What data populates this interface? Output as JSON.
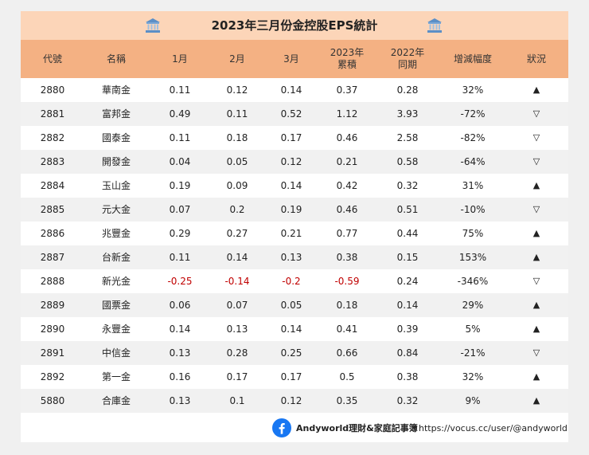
{
  "title": "2023年三月份金控股EPS統計",
  "icons": {
    "title_left": "bank-building-icon",
    "title_right": "bank-building-icon",
    "footer": "facebook-icon"
  },
  "colors": {
    "title_bg": "#fcd5b8",
    "header_bg": "#f4b183",
    "negative": "#c00000",
    "alt_row": "#f1f1f1",
    "facebook": "#1877f2"
  },
  "headers": [
    "代號",
    "名稱",
    "1月",
    "2月",
    "3月",
    "2023年\n累積",
    "2022年\n同期",
    "增減幅度",
    "狀況"
  ],
  "rows": [
    {
      "code": "2880",
      "name": "華南金",
      "m1": "0.11",
      "m2": "0.12",
      "m3": "0.14",
      "ytd": "0.37",
      "prev": "0.28",
      "change": "32%",
      "status": "▲"
    },
    {
      "code": "2881",
      "name": "富邦金",
      "m1": "0.49",
      "m2": "0.11",
      "m3": "0.52",
      "ytd": "1.12",
      "prev": "3.93",
      "change": "-72%",
      "status": "▽"
    },
    {
      "code": "2882",
      "name": "國泰金",
      "m1": "0.11",
      "m2": "0.18",
      "m3": "0.17",
      "ytd": "0.46",
      "prev": "2.58",
      "change": "-82%",
      "status": "▽"
    },
    {
      "code": "2883",
      "name": "開發金",
      "m1": "0.04",
      "m2": "0.05",
      "m3": "0.12",
      "ytd": "0.21",
      "prev": "0.58",
      "change": "-64%",
      "status": "▽"
    },
    {
      "code": "2884",
      "name": "玉山金",
      "m1": "0.19",
      "m2": "0.09",
      "m3": "0.14",
      "ytd": "0.42",
      "prev": "0.32",
      "change": "31%",
      "status": "▲"
    },
    {
      "code": "2885",
      "name": "元大金",
      "m1": "0.07",
      "m2": "0.2",
      "m3": "0.19",
      "ytd": "0.46",
      "prev": "0.51",
      "change": "-10%",
      "status": "▽"
    },
    {
      "code": "2886",
      "name": "兆豐金",
      "m1": "0.29",
      "m2": "0.27",
      "m3": "0.21",
      "ytd": "0.77",
      "prev": "0.44",
      "change": "75%",
      "status": "▲"
    },
    {
      "code": "2887",
      "name": "台新金",
      "m1": "0.11",
      "m2": "0.14",
      "m3": "0.13",
      "ytd": "0.38",
      "prev": "0.15",
      "change": "153%",
      "status": "▲"
    },
    {
      "code": "2888",
      "name": "新光金",
      "m1": "-0.25",
      "m2": "-0.14",
      "m3": "-0.2",
      "ytd": "-0.59",
      "prev": "0.24",
      "change": "-346%",
      "status": "▽"
    },
    {
      "code": "2889",
      "name": "國票金",
      "m1": "0.06",
      "m2": "0.07",
      "m3": "0.05",
      "ytd": "0.18",
      "prev": "0.14",
      "change": "29%",
      "status": "▲"
    },
    {
      "code": "2890",
      "name": "永豐金",
      "m1": "0.14",
      "m2": "0.13",
      "m3": "0.14",
      "ytd": "0.41",
      "prev": "0.39",
      "change": "5%",
      "status": "▲"
    },
    {
      "code": "2891",
      "name": "中信金",
      "m1": "0.13",
      "m2": "0.28",
      "m3": "0.25",
      "ytd": "0.66",
      "prev": "0.84",
      "change": "-21%",
      "status": "▽"
    },
    {
      "code": "2892",
      "name": "第一金",
      "m1": "0.16",
      "m2": "0.17",
      "m3": "0.17",
      "ytd": "0.5",
      "prev": "0.38",
      "change": "32%",
      "status": "▲"
    },
    {
      "code": "5880",
      "name": "合庫金",
      "m1": "0.13",
      "m2": "0.1",
      "m3": "0.12",
      "ytd": "0.35",
      "prev": "0.32",
      "change": "9%",
      "status": "▲"
    }
  ],
  "footer": {
    "name": "Andyworld理財&家庭記事簿",
    "url": "https://vocus.cc/user/@andyworld"
  }
}
